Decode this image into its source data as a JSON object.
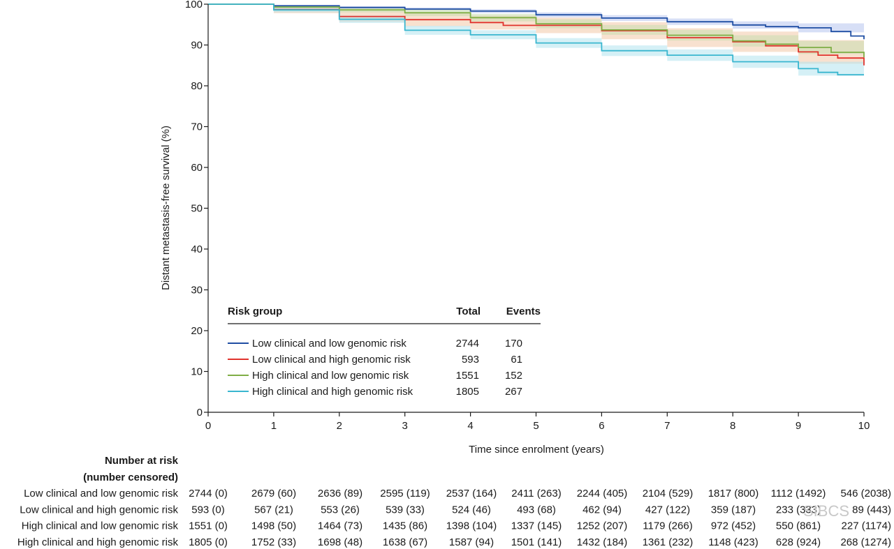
{
  "chart_data": {
    "type": "line",
    "subtype": "kaplan-meier",
    "xlabel": "Time since enrolment (years)",
    "ylabel": "Distant metastasis-free survival (%)",
    "xlim": [
      0,
      10
    ],
    "ylim": [
      0,
      100
    ],
    "xticks": [
      0,
      1,
      2,
      3,
      4,
      5,
      6,
      7,
      8,
      9,
      10
    ],
    "yticks": [
      0,
      10,
      20,
      30,
      40,
      50,
      60,
      70,
      80,
      90,
      100
    ],
    "grid": false,
    "legend": {
      "position": "bottom-left",
      "header": {
        "group": "Risk group",
        "total": "Total",
        "events": "Events"
      }
    },
    "series": [
      {
        "name": "Low clinical and low genomic risk",
        "color": "#1f4ea3",
        "ci_color": "#b7c4ee",
        "total": "2744",
        "events": "170",
        "points": [
          [
            0,
            100
          ],
          [
            1,
            99.6
          ],
          [
            2,
            99.2
          ],
          [
            3,
            98.8
          ],
          [
            4,
            98.3
          ],
          [
            5,
            97.4
          ],
          [
            6,
            96.6
          ],
          [
            7,
            95.7
          ],
          [
            8,
            94.9
          ],
          [
            8.5,
            94.5
          ],
          [
            9,
            94.2
          ],
          [
            9.5,
            93.3
          ],
          [
            9.8,
            92.2
          ],
          [
            10,
            91.4
          ]
        ],
        "ci": [
          [
            0,
            100,
            100
          ],
          [
            1,
            99.8,
            99.4
          ],
          [
            2,
            99.5,
            98.9
          ],
          [
            3,
            99.2,
            98.4
          ],
          [
            4,
            98.8,
            97.8
          ],
          [
            5,
            98.0,
            96.8
          ],
          [
            6,
            97.3,
            95.9
          ],
          [
            7,
            96.5,
            94.9
          ],
          [
            8,
            95.8,
            94.0
          ],
          [
            9,
            95.3,
            93.1
          ],
          [
            10,
            93.0,
            89.8
          ]
        ]
      },
      {
        "name": "Low clinical and high genomic risk",
        "color": "#e0322c",
        "ci_color": "#f3c9a8",
        "total": "593",
        "events": "61",
        "points": [
          [
            0,
            100
          ],
          [
            1,
            98.7
          ],
          [
            2,
            97.0
          ],
          [
            3,
            96.2
          ],
          [
            4,
            95.5
          ],
          [
            4.5,
            94.8
          ],
          [
            5,
            94.8
          ],
          [
            6,
            93.5
          ],
          [
            7,
            91.8
          ],
          [
            8,
            90.8
          ],
          [
            8.5,
            89.8
          ],
          [
            9,
            88.3
          ],
          [
            9.3,
            87.5
          ],
          [
            9.6,
            86.8
          ],
          [
            10,
            85.0
          ]
        ],
        "ci": [
          [
            0,
            100,
            100
          ],
          [
            1,
            99.6,
            97.8
          ],
          [
            2,
            98.3,
            95.7
          ],
          [
            3,
            97.8,
            94.6
          ],
          [
            4,
            97.2,
            93.8
          ],
          [
            5,
            96.7,
            92.9
          ],
          [
            6,
            95.6,
            91.4
          ],
          [
            7,
            94.1,
            89.5
          ],
          [
            8,
            93.3,
            88.3
          ],
          [
            9,
            91.2,
            85.4
          ],
          [
            10,
            89.0,
            81.0
          ]
        ]
      },
      {
        "name": "High clinical and low genomic risk",
        "color": "#7fae45",
        "ci_color": "#c9dfb0",
        "total": "1551",
        "events": "152",
        "points": [
          [
            0,
            100
          ],
          [
            1,
            99.3
          ],
          [
            2,
            98.6
          ],
          [
            3,
            97.9
          ],
          [
            4,
            96.7
          ],
          [
            5,
            95.2
          ],
          [
            6,
            93.7
          ],
          [
            7,
            92.4
          ],
          [
            8,
            91.0
          ],
          [
            8.5,
            90.2
          ],
          [
            9,
            89.4
          ],
          [
            9.5,
            88.2
          ],
          [
            10,
            87.0
          ]
        ],
        "ci": [
          [
            0,
            100,
            100
          ],
          [
            1,
            99.7,
            98.9
          ],
          [
            2,
            99.2,
            98.0
          ],
          [
            3,
            98.7,
            97.1
          ],
          [
            4,
            97.6,
            95.8
          ],
          [
            5,
            96.3,
            94.1
          ],
          [
            6,
            94.9,
            92.5
          ],
          [
            7,
            93.7,
            91.1
          ],
          [
            8,
            92.4,
            89.6
          ],
          [
            9,
            91.0,
            87.8
          ],
          [
            10,
            89.2,
            84.8
          ]
        ]
      },
      {
        "name": "High clinical and high genomic risk",
        "color": "#39b6cf",
        "ci_color": "#b3e3ef",
        "total": "1805",
        "events": "267",
        "points": [
          [
            0,
            100
          ],
          [
            1,
            98.6
          ],
          [
            2,
            96.3
          ],
          [
            3,
            93.6
          ],
          [
            4,
            92.5
          ],
          [
            5,
            90.5
          ],
          [
            6,
            88.6
          ],
          [
            7,
            87.5
          ],
          [
            8,
            85.9
          ],
          [
            9,
            84.2
          ],
          [
            9.3,
            83.3
          ],
          [
            9.6,
            82.7
          ],
          [
            10,
            82.7
          ]
        ],
        "ci": [
          [
            0,
            100,
            100
          ],
          [
            1,
            99.2,
            98.0
          ],
          [
            2,
            97.2,
            95.4
          ],
          [
            3,
            94.7,
            92.5
          ],
          [
            4,
            93.6,
            91.4
          ],
          [
            5,
            91.7,
            89.3
          ],
          [
            6,
            89.9,
            87.3
          ],
          [
            7,
            88.9,
            86.1
          ],
          [
            8,
            87.4,
            84.4
          ],
          [
            9,
            85.9,
            82.5
          ],
          [
            10,
            85.0,
            80.2
          ]
        ]
      }
    ],
    "risk_table": {
      "title_line1": "Number at risk",
      "title_line2": "(number censored)",
      "rows": [
        {
          "label": "Low clinical and low genomic risk",
          "values": [
            "2744 (0)",
            "2679 (60)",
            "2636 (89)",
            "2595 (119)",
            "2537 (164)",
            "2411 (263)",
            "2244 (405)",
            "2104 (529)",
            "1817 (800)",
            "1112 (1492)",
            "546 (2038)"
          ]
        },
        {
          "label": "Low clinical and high genomic risk",
          "values": [
            "593 (0)",
            "567 (21)",
            "553 (26)",
            "539 (33)",
            "524 (46)",
            "493 (68)",
            "462 (94)",
            "427 (122)",
            "359 (187)",
            "233 (333)",
            "89 (443)"
          ]
        },
        {
          "label": "High clinical and low genomic risk",
          "values": [
            "1551 (0)",
            "1498 (50)",
            "1464 (73)",
            "1435 (86)",
            "1398 (104)",
            "1337 (145)",
            "1252 (207)",
            "1179 (266)",
            "972 (452)",
            "550 (861)",
            "227 (1174)"
          ]
        },
        {
          "label": "High clinical and high genomic risk",
          "values": [
            "1805 (0)",
            "1752 (33)",
            "1698 (48)",
            "1638 (67)",
            "1587 (94)",
            "1501 (141)",
            "1432 (184)",
            "1361 (232)",
            "1148 (423)",
            "628 (924)",
            "268 (1274)"
          ]
        }
      ]
    },
    "watermark": "SIBCS"
  }
}
